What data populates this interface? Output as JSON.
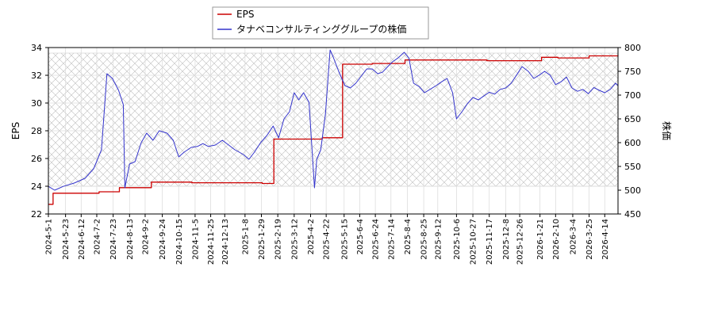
{
  "chart_data": {
    "type": "line",
    "legend": {
      "placement": "top-left",
      "entries": [
        {
          "name": "EPS",
          "color": "#cc0000"
        },
        {
          "name": "タナベコンサルティンググループの株価",
          "color": "#3333cc"
        }
      ]
    },
    "y_left": {
      "label": "EPS",
      "lim": [
        22,
        34
      ],
      "ticks": [
        22,
        24,
        26,
        28,
        30,
        32,
        34
      ]
    },
    "y_right": {
      "label": "株価",
      "lim": [
        450,
        800
      ],
      "ticks": [
        450,
        500,
        550,
        600,
        650,
        700,
        750,
        800
      ]
    },
    "x": {
      "lim": [
        "2024-05-01",
        "2026-05-01"
      ],
      "tick_labels": [
        "2024-5-1",
        "2024-5-23",
        "2024-6-12",
        "2024-7-2",
        "2024-7-23",
        "2024-8-13",
        "2024-9-2",
        "2024-9-24",
        "2024-10-15",
        "2024-11-5",
        "2024-11-25",
        "2024-12-13",
        "2025-1-8",
        "2025-1-29",
        "2025-2-19",
        "2025-3-12",
        "2025-4-2",
        "2025-4-22",
        "2025-5-15",
        "2025-6-4",
        "2025-6-24",
        "2025-7-14",
        "2025-8-4",
        "2025-8-25",
        "2025-9-12",
        "2025-10-6",
        "2025-10-27",
        "2025-11-17",
        "2025-12-8",
        "2025-12-26",
        "2026-1-21",
        "2026-2-10",
        "2026-3-4",
        "2026-3-25",
        "2026-4-14"
      ]
    },
    "grid": true,
    "shaded_region": {
      "y_left_range": [
        24,
        33.6
      ],
      "pattern": "crosshatch"
    },
    "series": [
      {
        "name": "EPS",
        "axis": "left",
        "color": "#cc0000",
        "step": true,
        "points": [
          [
            "2024-05-01",
            22.7
          ],
          [
            "2024-05-07",
            23.5
          ],
          [
            "2024-06-12",
            23.5
          ],
          [
            "2024-07-05",
            23.6
          ],
          [
            "2024-07-31",
            23.9
          ],
          [
            "2024-09-10",
            24.3
          ],
          [
            "2024-10-01",
            24.3
          ],
          [
            "2024-11-01",
            24.25
          ],
          [
            "2025-01-30",
            24.2
          ],
          [
            "2025-02-14",
            27.4
          ],
          [
            "2025-04-17",
            27.5
          ],
          [
            "2025-05-13",
            32.8
          ],
          [
            "2025-06-20",
            32.85
          ],
          [
            "2025-08-01",
            33.1
          ],
          [
            "2025-09-19",
            33.1
          ],
          [
            "2025-11-14",
            33.05
          ],
          [
            "2026-01-23",
            33.3
          ],
          [
            "2026-02-13",
            33.25
          ],
          [
            "2026-03-25",
            33.4
          ],
          [
            "2026-05-01",
            33.45
          ]
        ]
      },
      {
        "name": "タナベコンサルティンググループの株価",
        "axis": "right",
        "color": "#3333cc",
        "step": false,
        "points": [
          [
            "2024-05-01",
            508
          ],
          [
            "2024-05-09",
            500
          ],
          [
            "2024-05-20",
            508
          ],
          [
            "2024-06-03",
            515
          ],
          [
            "2024-06-17",
            525
          ],
          [
            "2024-06-28",
            545
          ],
          [
            "2024-07-08",
            585
          ],
          [
            "2024-07-15",
            745
          ],
          [
            "2024-07-22",
            735
          ],
          [
            "2024-07-30",
            710
          ],
          [
            "2024-08-05",
            680
          ],
          [
            "2024-08-07",
            505
          ],
          [
            "2024-08-13",
            555
          ],
          [
            "2024-08-20",
            560
          ],
          [
            "2024-08-28",
            600
          ],
          [
            "2024-09-04",
            620
          ],
          [
            "2024-09-12",
            605
          ],
          [
            "2024-09-20",
            625
          ],
          [
            "2024-09-30",
            620
          ],
          [
            "2024-10-08",
            605
          ],
          [
            "2024-10-15",
            570
          ],
          [
            "2024-10-22",
            580
          ],
          [
            "2024-10-31",
            590
          ],
          [
            "2024-11-08",
            592
          ],
          [
            "2024-11-15",
            598
          ],
          [
            "2024-11-22",
            592
          ],
          [
            "2024-12-01",
            595
          ],
          [
            "2024-12-10",
            605
          ],
          [
            "2024-12-18",
            595
          ],
          [
            "2024-12-26",
            585
          ],
          [
            "2025-01-06",
            575
          ],
          [
            "2025-01-13",
            565
          ],
          [
            "2025-01-20",
            580
          ],
          [
            "2025-01-28",
            600
          ],
          [
            "2025-02-05",
            615
          ],
          [
            "2025-02-13",
            635
          ],
          [
            "2025-02-20",
            610
          ],
          [
            "2025-02-27",
            650
          ],
          [
            "2025-03-06",
            665
          ],
          [
            "2025-03-12",
            705
          ],
          [
            "2025-03-18",
            690
          ],
          [
            "2025-03-24",
            705
          ],
          [
            "2025-03-31",
            685
          ],
          [
            "2025-04-07",
            505
          ],
          [
            "2025-04-10",
            565
          ],
          [
            "2025-04-15",
            585
          ],
          [
            "2025-04-21",
            660
          ],
          [
            "2025-04-27",
            795
          ],
          [
            "2025-05-01",
            780
          ],
          [
            "2025-05-08",
            750
          ],
          [
            "2025-05-16",
            720
          ],
          [
            "2025-05-23",
            715
          ],
          [
            "2025-05-30",
            725
          ],
          [
            "2025-06-06",
            740
          ],
          [
            "2025-06-13",
            755
          ],
          [
            "2025-06-20",
            755
          ],
          [
            "2025-06-27",
            745
          ],
          [
            "2025-07-03",
            748
          ],
          [
            "2025-07-10",
            760
          ],
          [
            "2025-07-16",
            770
          ],
          [
            "2025-07-23",
            778
          ],
          [
            "2025-07-31",
            790
          ],
          [
            "2025-08-06",
            778
          ],
          [
            "2025-08-12",
            725
          ],
          [
            "2025-08-19",
            718
          ],
          [
            "2025-08-26",
            705
          ],
          [
            "2025-09-02",
            712
          ],
          [
            "2025-09-10",
            720
          ],
          [
            "2025-09-17",
            728
          ],
          [
            "2025-09-24",
            735
          ],
          [
            "2025-10-01",
            705
          ],
          [
            "2025-10-06",
            650
          ],
          [
            "2025-10-13",
            665
          ],
          [
            "2025-10-20",
            682
          ],
          [
            "2025-10-27",
            695
          ],
          [
            "2025-11-03",
            690
          ],
          [
            "2025-11-10",
            698
          ],
          [
            "2025-11-17",
            706
          ],
          [
            "2025-11-24",
            702
          ],
          [
            "2025-12-01",
            712
          ],
          [
            "2025-12-08",
            715
          ],
          [
            "2025-12-15",
            725
          ],
          [
            "2025-12-22",
            742
          ],
          [
            "2025-12-29",
            760
          ],
          [
            "2026-01-06",
            750
          ],
          [
            "2026-01-13",
            735
          ],
          [
            "2026-01-20",
            742
          ],
          [
            "2026-01-27",
            750
          ],
          [
            "2026-02-03",
            742
          ],
          [
            "2026-02-10",
            722
          ],
          [
            "2026-02-17",
            728
          ],
          [
            "2026-02-24",
            738
          ],
          [
            "2026-03-03",
            715
          ],
          [
            "2026-03-10",
            708
          ],
          [
            "2026-03-17",
            712
          ],
          [
            "2026-03-24",
            703
          ],
          [
            "2026-03-31",
            716
          ],
          [
            "2026-04-07",
            710
          ],
          [
            "2026-04-14",
            705
          ],
          [
            "2026-04-21",
            712
          ],
          [
            "2026-04-28",
            725
          ],
          [
            "2026-05-01",
            720
          ]
        ]
      }
    ]
  }
}
